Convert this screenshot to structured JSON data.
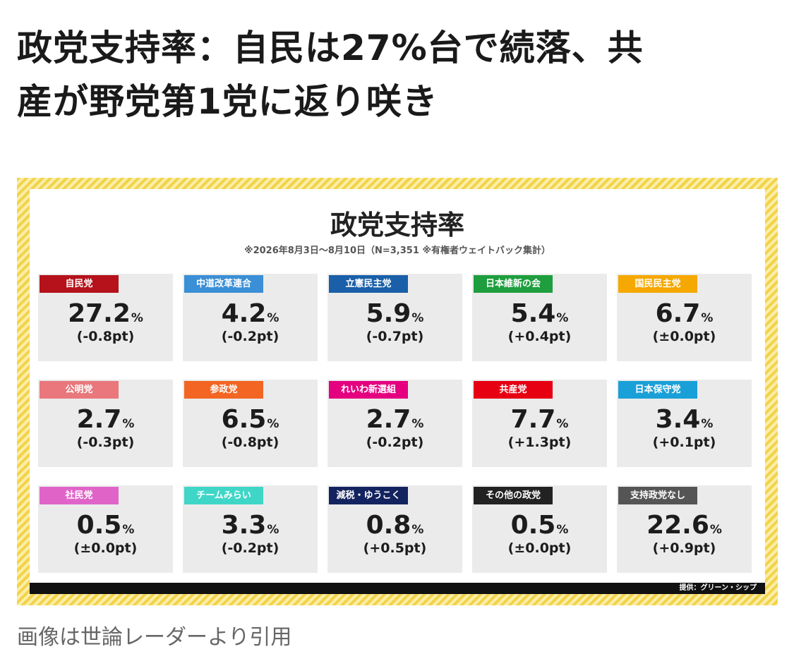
{
  "article": {
    "headline_line1": "政党支持率：自民は27%台で続落、共",
    "headline_line2": "産が野党第1党に返り咲き",
    "caption": "画像は世論レーダーより引用"
  },
  "chart_data": {
    "type": "table",
    "title": "政党支持率",
    "subtitle": "※2026年8月3日～8月10日（N=3,351 ※有権者ウェイトバック集計）",
    "credit": "提供：グリーン・シップ",
    "unit": "%",
    "parties": [
      {
        "name": "自民党",
        "value": "27.2",
        "change": "(-0.8pt)",
        "color": "#b5121b",
        "tag_text_color": "#ffffff"
      },
      {
        "name": "中道改革連合",
        "value": "4.2",
        "change": "(-0.2pt)",
        "color": "#3a8fd6",
        "tag_text_color": "#ffffff"
      },
      {
        "name": "立憲民主党",
        "value": "5.9",
        "change": "(-0.7pt)",
        "color": "#1a5fa8",
        "tag_text_color": "#ffffff"
      },
      {
        "name": "日本維新の会",
        "value": "5.4",
        "change": "(+0.4pt)",
        "color": "#1e9e3e",
        "tag_text_color": "#ffffff"
      },
      {
        "name": "国民民主党",
        "value": "6.7",
        "change": "(±0.0pt)",
        "color": "#f5a800",
        "tag_text_color": "#ffffff"
      },
      {
        "name": "公明党",
        "value": "2.7",
        "change": "(-0.3pt)",
        "color": "#e9777b",
        "tag_text_color": "#ffffff"
      },
      {
        "name": "参政党",
        "value": "6.5",
        "change": "(-0.8pt)",
        "color": "#f26522",
        "tag_text_color": "#ffffff"
      },
      {
        "name": "れいわ新選組",
        "value": "2.7",
        "change": "(-0.2pt)",
        "color": "#e4007f",
        "tag_text_color": "#ffffff"
      },
      {
        "name": "共産党",
        "value": "7.7",
        "change": "(+1.3pt)",
        "color": "#e60012",
        "tag_text_color": "#ffffff"
      },
      {
        "name": "日本保守党",
        "value": "3.4",
        "change": "(+0.1pt)",
        "color": "#1aa0d8",
        "tag_text_color": "#ffffff"
      },
      {
        "name": "社民党",
        "value": "0.5",
        "change": "(±0.0pt)",
        "color": "#e064c8",
        "tag_text_color": "#ffffff"
      },
      {
        "name": "チームみらい",
        "value": "3.3",
        "change": "(-0.2pt)",
        "color": "#3fd6c8",
        "tag_text_color": "#ffffff"
      },
      {
        "name": "減税・ゆうこく",
        "value": "0.8",
        "change": "(+0.5pt)",
        "color": "#13235f",
        "tag_text_color": "#ffffff"
      },
      {
        "name": "その他の政党",
        "value": "0.5",
        "change": "(±0.0pt)",
        "color": "#222222",
        "tag_text_color": "#ffffff"
      },
      {
        "name": "支持政党なし",
        "value": "22.6",
        "change": "(+0.9pt)",
        "color": "#555555",
        "tag_text_color": "#ffffff"
      }
    ]
  }
}
